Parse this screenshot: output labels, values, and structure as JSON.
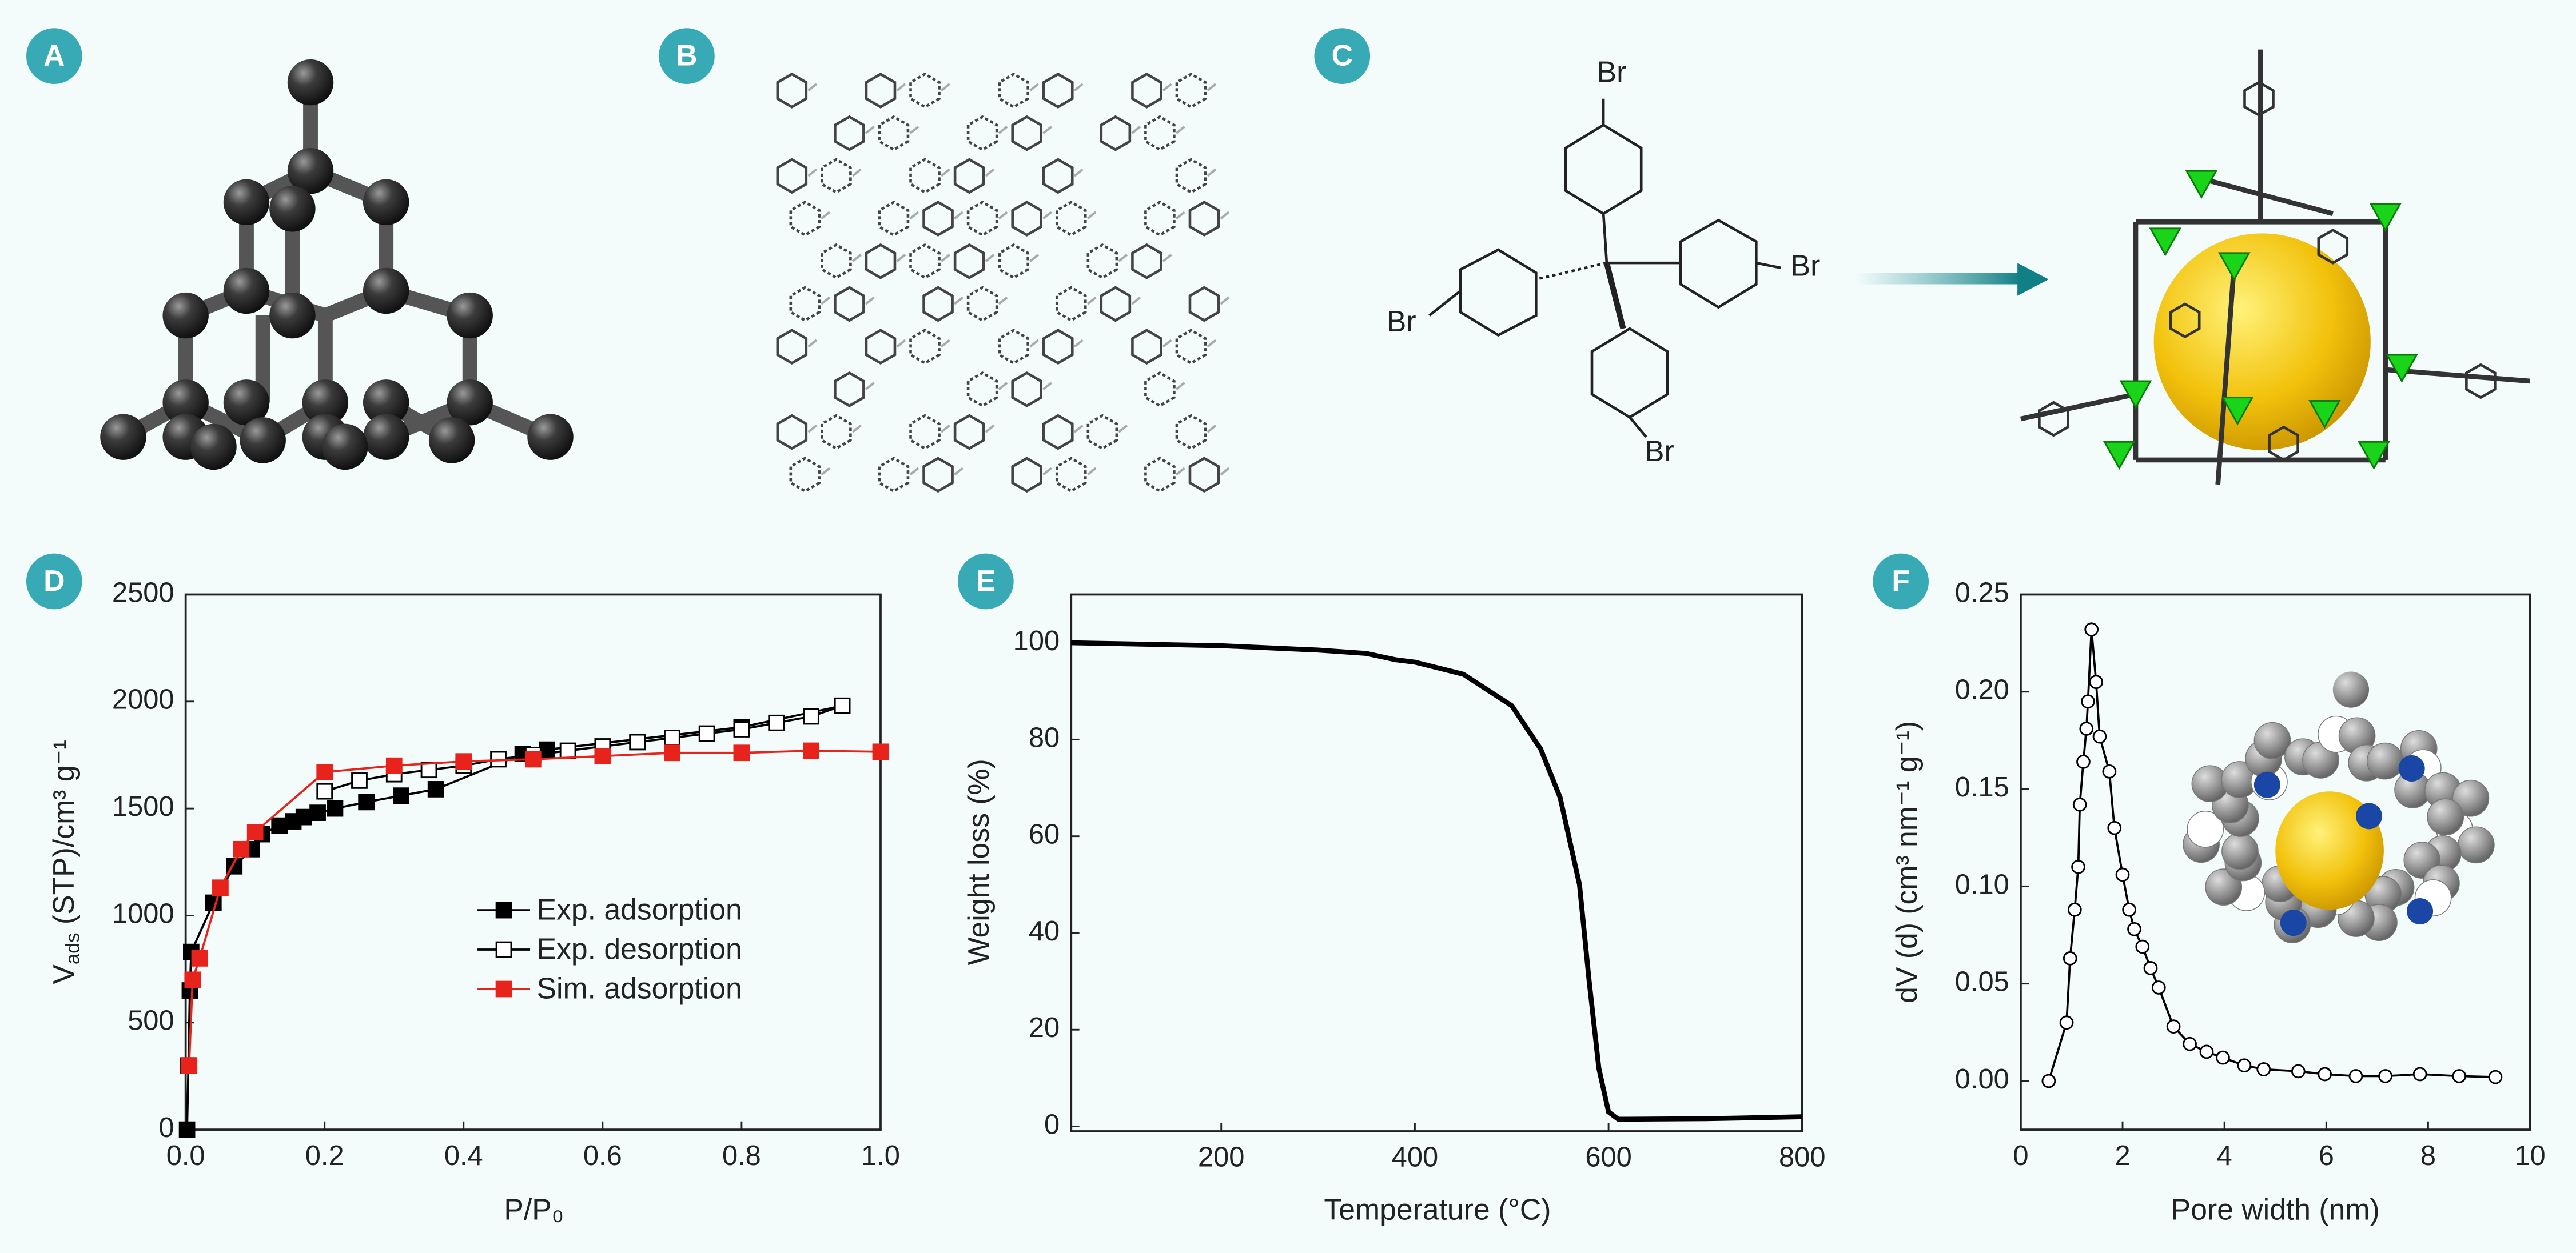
{
  "panel_labels": [
    "A",
    "B",
    "C",
    "D",
    "E",
    "F"
  ],
  "structure_labels": [
    "Br",
    "Br",
    "Br",
    "Br"
  ],
  "chart_data": [
    {
      "type": "line",
      "x_label": "P/P₀",
      "y_label": [
        "V",
        "ads",
        "(STP)/cm³ g⁻¹"
      ],
      "xlim": [
        0,
        1
      ],
      "ylim": [
        0,
        2500
      ],
      "xticks": [
        {
          "value": 0,
          "label": "0.0"
        },
        0.2,
        0.4,
        0.6,
        0.8,
        {
          "value": 1,
          "label": "1.0"
        }
      ],
      "yticks": [
        0,
        500,
        1000,
        1500,
        2000,
        2500
      ],
      "legend": "center right",
      "series": [
        {
          "name": "Exp. adsorption",
          "color": "#000000",
          "marker": "square",
          "marker_fill": "#000000",
          "x": [
            0.002,
            0.004,
            0.006,
            0.008,
            0.04,
            0.07,
            0.095,
            0.11,
            0.135,
            0.155,
            0.17,
            0.19,
            0.215,
            0.26,
            0.31,
            0.36,
            0.485,
            0.52,
            0.8,
            0.945
          ],
          "values": [
            0,
            300,
            650,
            830,
            1060,
            1230,
            1310,
            1380,
            1420,
            1440,
            1460,
            1480,
            1500,
            1530,
            1560,
            1590,
            1755,
            1775,
            1880,
            1980
          ]
        },
        {
          "name": "Exp. desorption",
          "color": "#000000",
          "marker": "square",
          "marker_fill": "#ffffff",
          "x": [
            0.2,
            0.25,
            0.3,
            0.35,
            0.4,
            0.45,
            0.5,
            0.55,
            0.6,
            0.65,
            0.7,
            0.75,
            0.8,
            0.85,
            0.9,
            0.945
          ],
          "values": [
            1580,
            1630,
            1660,
            1680,
            1700,
            1730,
            1750,
            1770,
            1790,
            1810,
            1830,
            1850,
            1870,
            1900,
            1930,
            1980
          ]
        },
        {
          "name": "Sim. adsorption",
          "color": "#e8231b",
          "marker": "square",
          "marker_fill": "#e8231b",
          "x": [
            0.005,
            0.01,
            0.02,
            0.05,
            0.08,
            0.1,
            0.2,
            0.3,
            0.4,
            0.5,
            0.6,
            0.7,
            0.8,
            0.9,
            1.0
          ],
          "values": [
            300,
            700,
            800,
            1130,
            1310,
            1390,
            1670,
            1700,
            1720,
            1730,
            1745,
            1760,
            1760,
            1770,
            1765
          ]
        }
      ]
    },
    {
      "type": "line",
      "x_label": "Temperature (°C)",
      "y_label": "Weight loss (%)",
      "xlim": [
        45,
        800
      ],
      "ylim": [
        -1,
        110
      ],
      "xticks": [
        200,
        400,
        600,
        800
      ],
      "yticks": [
        0,
        20,
        40,
        60,
        80,
        100
      ],
      "series": [
        {
          "color": "#000000",
          "x": [
            45,
            100,
            200,
            300,
            350,
            380,
            400,
            450,
            500,
            530,
            550,
            570,
            580,
            590,
            600,
            610,
            620,
            700,
            800
          ],
          "values": [
            100,
            99.8,
            99.4,
            98.5,
            97.8,
            96.5,
            96,
            93.5,
            87,
            78,
            68,
            50,
            30,
            12,
            3,
            1.5,
            1.5,
            1.6,
            2
          ]
        }
      ]
    },
    {
      "type": "line",
      "x_label": "Pore width (nm)",
      "y_label": "dV (d) (cm³ nm⁻¹ g⁻¹)",
      "xlim": [
        0,
        10
      ],
      "ylim": [
        -0.025,
        0.25
      ],
      "xticks": [
        0,
        2,
        4,
        6,
        8,
        10
      ],
      "yticks": [
        {
          "value": 0,
          "label": "0.00"
        },
        0.05,
        {
          "value": 0.1,
          "label": "0.10"
        },
        0.15,
        {
          "value": 0.2,
          "label": "0.20"
        },
        0.25
      ],
      "series": [
        {
          "color": "#000000",
          "marker": "circle",
          "marker_fill": "#ffffff",
          "x": [
            0.55,
            0.9,
            0.97,
            1.06,
            1.13,
            1.16,
            1.23,
            1.29,
            1.32,
            1.39,
            1.48,
            1.55,
            1.74,
            1.84,
            2.0,
            2.13,
            2.23,
            2.39,
            2.55,
            2.71,
            3.0,
            3.32,
            3.65,
            3.97,
            4.39,
            4.77,
            5.45,
            5.97,
            6.58,
            7.16,
            7.84,
            8.61,
            9.32
          ],
          "values": [
            0,
            0.03,
            0.063,
            0.088,
            0.11,
            0.142,
            0.164,
            0.181,
            0.195,
            0.232,
            0.205,
            0.177,
            0.159,
            0.13,
            0.106,
            0.088,
            0.078,
            0.069,
            0.058,
            0.048,
            0.028,
            0.019,
            0.015,
            0.012,
            0.008,
            0.006,
            0.005,
            0.0035,
            0.0025,
            0.0025,
            0.0035,
            0.0025,
            0.002
          ]
        }
      ]
    }
  ]
}
